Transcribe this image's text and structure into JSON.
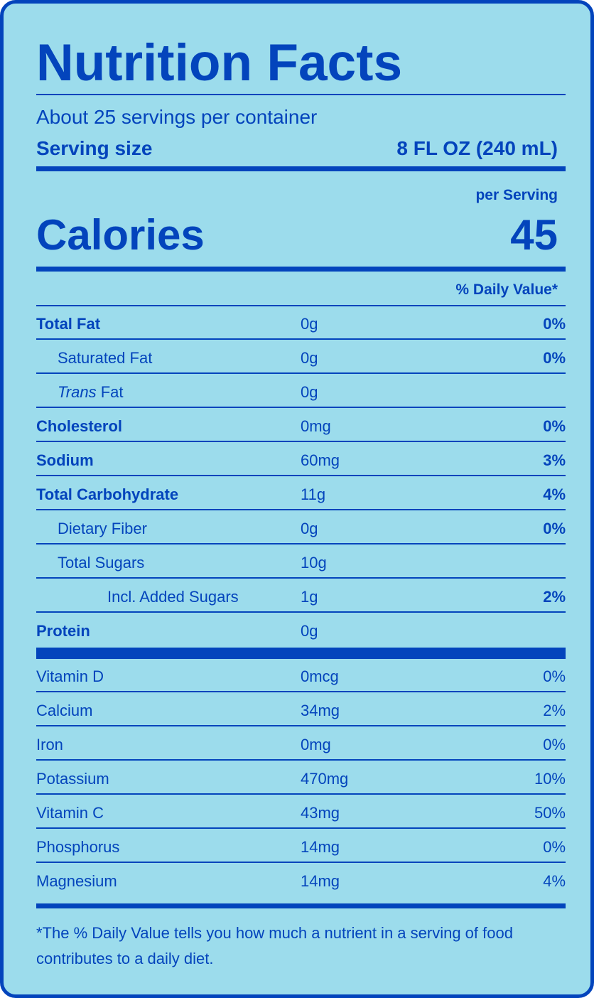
{
  "title": "Nutrition Facts",
  "servings_per_container": "About 25 servings per container",
  "serving_size_label": "Serving size",
  "serving_size_value": "8 FL OZ (240 mL)",
  "per_serving": "per Serving",
  "calories_label": "Calories",
  "calories_value": "45",
  "daily_value_header": "% Daily Value*",
  "nutrients": [
    {
      "name": "Total Fat",
      "amount": "0g",
      "dv": "0%"
    },
    {
      "name": "Saturated Fat",
      "amount": "0g",
      "dv": "0%"
    },
    {
      "name_italic": "Trans",
      "name_rest": " Fat",
      "amount": "0g",
      "dv": ""
    },
    {
      "name": "Cholesterol",
      "amount": "0mg",
      "dv": "0%"
    },
    {
      "name": "Sodium",
      "amount": "60mg",
      "dv": "3%"
    },
    {
      "name": "Total Carbohydrate",
      "amount": "11g",
      "dv": "4%"
    },
    {
      "name": "Dietary Fiber",
      "amount": "0g",
      "dv": "0%"
    },
    {
      "name": "Total Sugars",
      "amount": "10g",
      "dv": ""
    },
    {
      "name": "Incl. Added Sugars",
      "amount": "1g",
      "dv": "2%"
    },
    {
      "name": "Protein",
      "amount": "0g",
      "dv": ""
    }
  ],
  "vitamins": [
    {
      "name": "Vitamin D",
      "amount": "0mcg",
      "dv": "0%"
    },
    {
      "name": "Calcium",
      "amount": "34mg",
      "dv": "2%"
    },
    {
      "name": "Iron",
      "amount": "0mg",
      "dv": "0%"
    },
    {
      "name": "Potassium",
      "amount": "470mg",
      "dv": "10%"
    },
    {
      "name": "Vitamin C",
      "amount": "43mg",
      "dv": "50%"
    },
    {
      "name": "Phosphorus",
      "amount": "14mg",
      "dv": "0%"
    },
    {
      "name": "Magnesium",
      "amount": "14mg",
      "dv": "4%"
    }
  ],
  "footnote": "*The % Daily Value tells you how much a nutrient in a serving of food contributes to a daily diet.",
  "colors": {
    "background": "#9cdcec",
    "ink": "#0344bc"
  }
}
